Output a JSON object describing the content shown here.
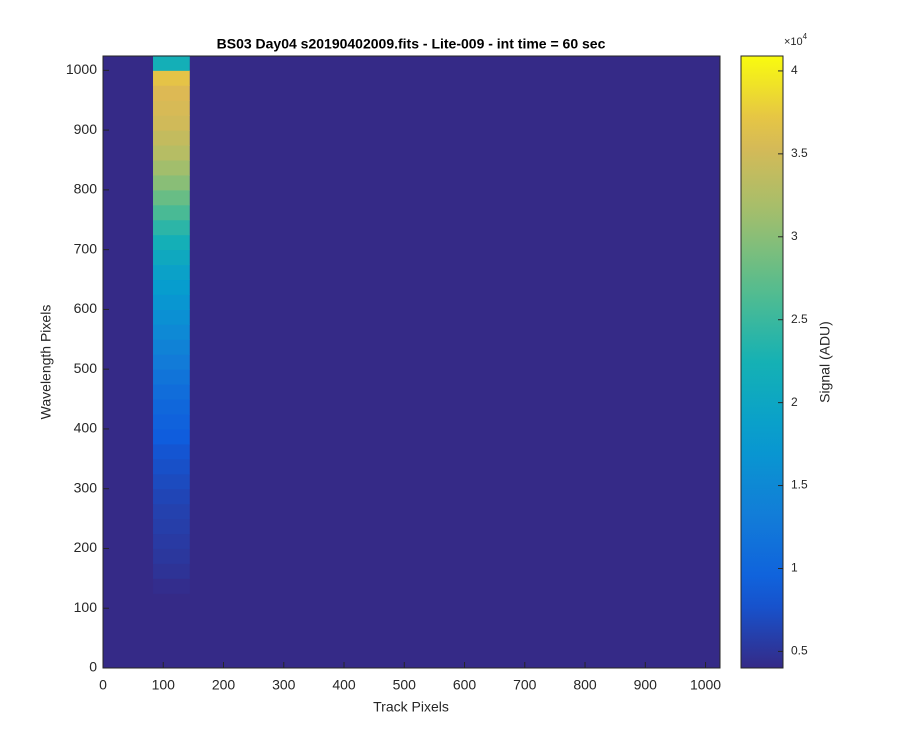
{
  "chart_data": {
    "type": "heatmap",
    "title": "BS03 Day04  s20190402009.fits - Lite-009 - int time = 60 sec",
    "x_label": "Track Pixels",
    "y_label": "Wavelength Pixels",
    "colorbar_label": "Signal (ADU)",
    "colorbar_exponent": "×10",
    "colorbar_exponent_power": "4",
    "xlim": [
      0,
      1024
    ],
    "ylim": [
      0,
      1024
    ],
    "xticks": [
      0,
      100,
      200,
      300,
      400,
      500,
      600,
      700,
      800,
      900,
      1000
    ],
    "yticks": [
      0,
      100,
      200,
      300,
      400,
      500,
      600,
      700,
      800,
      900,
      1000
    ],
    "background": 4000,
    "x_edges": [
      83,
      144
    ],
    "y_edges": [
      125,
      150,
      175,
      200,
      225,
      250,
      275,
      300,
      325,
      350,
      375,
      400,
      425,
      450,
      475,
      500,
      525,
      550,
      575,
      600,
      625,
      650,
      675,
      700,
      725,
      750,
      775,
      800,
      825,
      850,
      875,
      900,
      925,
      950,
      975,
      1000,
      1025
    ],
    "values": [
      4300,
      4800,
      5200,
      5500,
      5800,
      6100,
      6500,
      7000,
      7500,
      8000,
      8700,
      9500,
      10200,
      11000,
      12000,
      13000,
      14000,
      15000,
      16000,
      17000,
      18000,
      19000,
      20500,
      22000,
      24000,
      26000,
      28000,
      30000,
      31500,
      33000,
      34000,
      35000,
      35500,
      36000,
      37000,
      22000
    ],
    "clim": [
      4000,
      40900
    ],
    "cticks": [
      {
        "value": 5000,
        "label": "0.5"
      },
      {
        "value": 10000,
        "label": "1"
      },
      {
        "value": 15000,
        "label": "1.5"
      },
      {
        "value": 20000,
        "label": "2"
      },
      {
        "value": 25000,
        "label": "2.5"
      },
      {
        "value": 30000,
        "label": "3"
      },
      {
        "value": 35000,
        "label": "3.5"
      },
      {
        "value": 40000,
        "label": "4"
      }
    ]
  }
}
